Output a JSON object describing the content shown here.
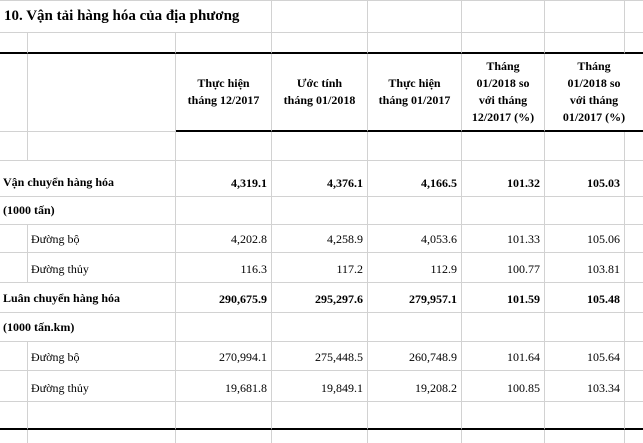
{
  "title": "10. Vận tải hàng hóa của địa phương",
  "colors": {
    "background": "#ffffff",
    "text": "#000000",
    "gridline": "#d2d2d2",
    "rule": "#000000"
  },
  "table": {
    "headers": {
      "c1": "Thực hiện\ntháng 12/2017",
      "c2": "Ước tính\ntháng 01/2018",
      "c3": "Thực hiện\ntháng 01/2017",
      "c4": "Tháng\n01/2018 so\nvới tháng\n12/2017 (%)",
      "c5": "Tháng\n01/2018 so\nvới tháng\n01/2017 (%)"
    },
    "rows": [
      {
        "label": "Vận chuyển hàng hóa",
        "style": "group",
        "values": [
          "4,319.1",
          "4,376.1",
          "4,166.5",
          "101.32",
          "105.03"
        ]
      },
      {
        "label": "(1000 tấn)",
        "style": "unit"
      },
      {
        "label": "Đường bộ",
        "style": "sub",
        "values": [
          "4,202.8",
          "4,258.9",
          "4,053.6",
          "101.33",
          "105.06"
        ]
      },
      {
        "label": "Đường thủy",
        "style": "sub",
        "values": [
          "116.3",
          "117.2",
          "112.9",
          "100.77",
          "103.81"
        ]
      },
      {
        "label": "Luân chuyển hàng hóa",
        "style": "group",
        "values": [
          "290,675.9",
          "295,297.6",
          "279,957.1",
          "101.59",
          "105.48"
        ]
      },
      {
        "label": "(1000 tấn.km)",
        "style": "unit"
      },
      {
        "label": "Đường bộ",
        "style": "sub",
        "values": [
          "270,994.1",
          "275,448.5",
          "260,748.9",
          "101.64",
          "105.64"
        ]
      },
      {
        "label": "Đường thủy",
        "style": "sub",
        "values": [
          "19,681.8",
          "19,849.1",
          "19,208.2",
          "100.85",
          "103.34"
        ]
      }
    ]
  }
}
